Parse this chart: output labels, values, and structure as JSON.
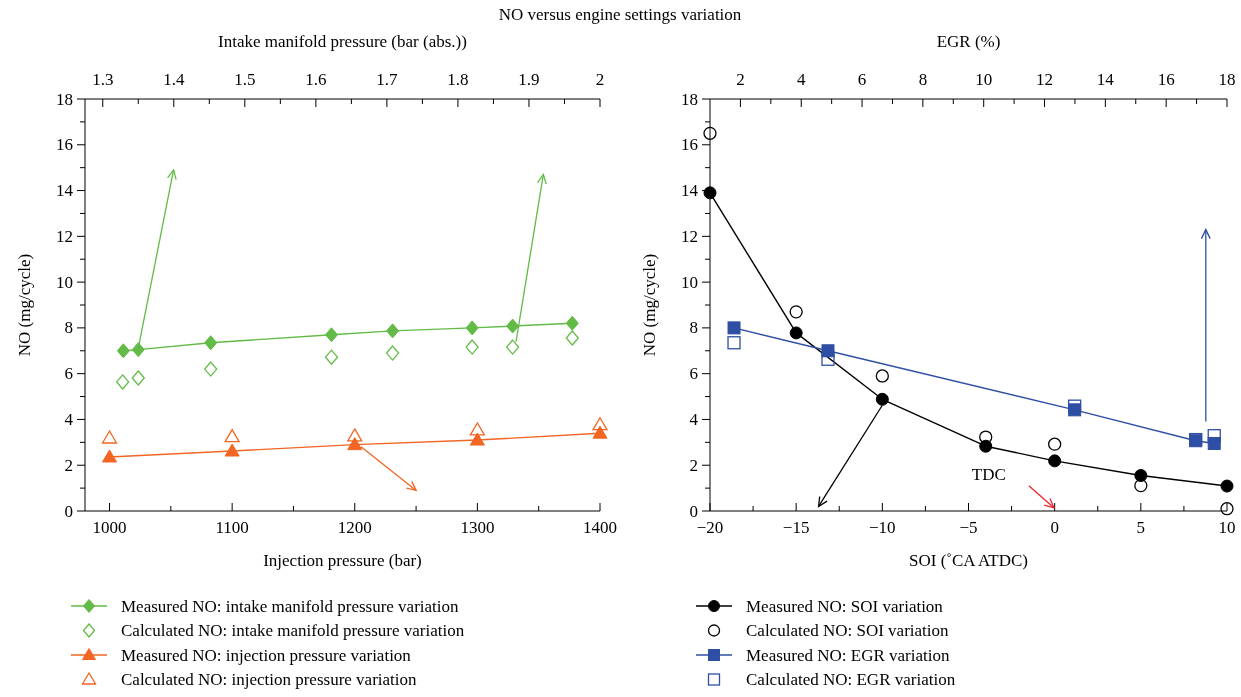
{
  "chart_data": [
    {
      "type": "line",
      "title": "NO versus engine settings variation",
      "xlabel": "Injection pressure (bar)",
      "x2label": "Intake manifold pressure (bar (abs.))",
      "ylabel": "NO (mg/cycle)",
      "xlim": [
        980,
        1400
      ],
      "xticks": [
        1000,
        {
          "value": 1050,
          "label": null
        },
        1100,
        {
          "value": 1150,
          "label": null
        },
        1200,
        {
          "value": 1250,
          "label": null
        },
        1300,
        {
          "value": 1350,
          "label": null
        },
        1400
      ],
      "x2lim": [
        1.275,
        2
      ],
      "x2ticks": [
        1.3,
        {
          "value": 1.35,
          "label": null
        },
        1.4,
        {
          "value": 1.45,
          "label": null
        },
        1.5,
        {
          "value": 1.55,
          "label": null
        },
        1.6,
        {
          "value": 1.65,
          "label": null
        },
        1.7,
        {
          "value": 1.75,
          "label": null
        },
        1.8,
        {
          "value": 1.85,
          "label": null
        },
        1.9,
        {
          "value": 1.95,
          "label": null
        },
        2
      ],
      "ylim": [
        0,
        18
      ],
      "yticks": [
        0,
        {
          "value": 1,
          "label": null
        },
        2,
        {
          "value": 3,
          "label": null
        },
        4,
        {
          "value": 5,
          "label": null
        },
        6,
        {
          "value": 7,
          "label": null
        },
        8,
        {
          "value": 9,
          "label": null
        },
        10,
        {
          "value": 11,
          "label": null
        },
        12,
        {
          "value": 13,
          "label": null
        },
        14,
        {
          "value": 15,
          "label": null
        },
        16,
        {
          "value": 17,
          "label": null
        },
        18
      ],
      "legend": "bottom",
      "series": [
        {
          "name": "Measured NO: intake manifold pressure variation",
          "type": "line",
          "color": "#62bb46",
          "marker": "diamond",
          "axis": "x2",
          "x": [
            1.329,
            1.35,
            1.452,
            1.622,
            1.708,
            1.82,
            1.877,
            1.961
          ],
          "values": [
            7.0,
            7.05,
            7.35,
            7.7,
            7.87,
            8.0,
            8.08,
            8.2
          ]
        },
        {
          "name": "Calculated NO: intake manifold pressure variation",
          "type": "scatter",
          "color": "#62bb46",
          "marker": "diamond",
          "axis": "x2",
          "x": [
            1.328,
            1.35,
            1.452,
            1.622,
            1.708,
            1.82,
            1.877,
            1.961
          ],
          "values": [
            5.64,
            5.81,
            6.2,
            6.72,
            6.9,
            7.16,
            7.16,
            7.56
          ]
        },
        {
          "name": "Measured NO: injection pressure variation",
          "type": "line",
          "color": "#f26522",
          "marker": "triangle",
          "x": [
            1000,
            1100,
            1200,
            1300,
            1400
          ],
          "values": [
            2.36,
            2.62,
            2.9,
            3.1,
            3.4
          ]
        },
        {
          "name": "Calculated NO: injection pressure variation",
          "type": "scatter",
          "color": "#f26522",
          "marker": "triangle",
          "x": [
            1000,
            1100,
            1200,
            1300,
            1400
          ],
          "values": [
            3.19,
            3.25,
            3.28,
            3.54,
            3.77
          ]
        }
      ]
    },
    {
      "type": "line",
      "xlabel": "SOI (˚CA ATDC)",
      "x2label": "EGR (%)",
      "ylabel": "NO (mg/cycle)",
      "xlim": [
        -20,
        10
      ],
      "xticks": [
        {
          "value": -20,
          "label": "−20"
        },
        {
          "value": -17.5,
          "label": null
        },
        {
          "value": -15,
          "label": "−15"
        },
        {
          "value": -12.5,
          "label": null
        },
        {
          "value": -10,
          "label": "−10"
        },
        {
          "value": -7.5,
          "label": null
        },
        {
          "value": -5,
          "label": "−5"
        },
        {
          "value": -2.5,
          "label": null
        },
        0,
        {
          "value": 2.5,
          "label": null
        },
        5,
        {
          "value": 7.5,
          "label": null
        },
        10
      ],
      "x2lim": [
        1,
        18
      ],
      "x2ticks": [
        2,
        {
          "value": 3,
          "label": null
        },
        4,
        {
          "value": 5,
          "label": null
        },
        6,
        {
          "value": 7,
          "label": null
        },
        8,
        {
          "value": 9,
          "label": null
        },
        10,
        {
          "value": 11,
          "label": null
        },
        12,
        {
          "value": 13,
          "label": null
        },
        14,
        {
          "value": 15,
          "label": null
        },
        16,
        {
          "value": 17,
          "label": null
        },
        18
      ],
      "ylim": [
        0,
        18
      ],
      "yticks": [
        0,
        {
          "value": 1,
          "label": null
        },
        2,
        {
          "value": 3,
          "label": null
        },
        4,
        {
          "value": 5,
          "label": null
        },
        6,
        {
          "value": 7,
          "label": null
        },
        8,
        {
          "value": 9,
          "label": null
        },
        10,
        {
          "value": 11,
          "label": null
        },
        12,
        {
          "value": 13,
          "label": null
        },
        14,
        {
          "value": 15,
          "label": null
        },
        16,
        {
          "value": 17,
          "label": null
        },
        18
      ],
      "legend": "bottom",
      "annotations": [
        "TDC"
      ],
      "series": [
        {
          "name": "Measured NO: SOI variation",
          "type": "line",
          "color": "#000000",
          "marker": "circle",
          "x": [
            -20,
            -15,
            -10,
            -4,
            0,
            5,
            10
          ],
          "values": [
            13.9,
            7.78,
            4.88,
            2.83,
            2.19,
            1.55,
            1.09
          ]
        },
        {
          "name": "Calculated NO: SOI variation",
          "type": "scatter",
          "color": "#000000",
          "marker": "circle",
          "x": [
            -20,
            -15,
            -10,
            -4,
            0,
            5,
            10
          ],
          "values": [
            16.5,
            8.7,
            5.9,
            3.23,
            2.92,
            1.11,
            0.1
          ]
        },
        {
          "name": "Measured NO: EGR variation",
          "type": "line",
          "color": "#2e4fa3",
          "marker": "square",
          "axis": "x2",
          "x": [
            1.79,
            4.88,
            12.99,
            16.97,
            17.58
          ],
          "values": [
            8.0,
            7.0,
            4.42,
            3.07,
            2.95
          ]
        },
        {
          "name": "Calculated NO: EGR variation",
          "type": "scatter",
          "color": "#2e4fa3",
          "marker": "square",
          "axis": "x2",
          "x": [
            1.79,
            4.88,
            12.99,
            16.97,
            17.58
          ],
          "values": [
            7.35,
            6.63,
            4.58,
            3.12,
            3.29
          ]
        }
      ]
    }
  ]
}
